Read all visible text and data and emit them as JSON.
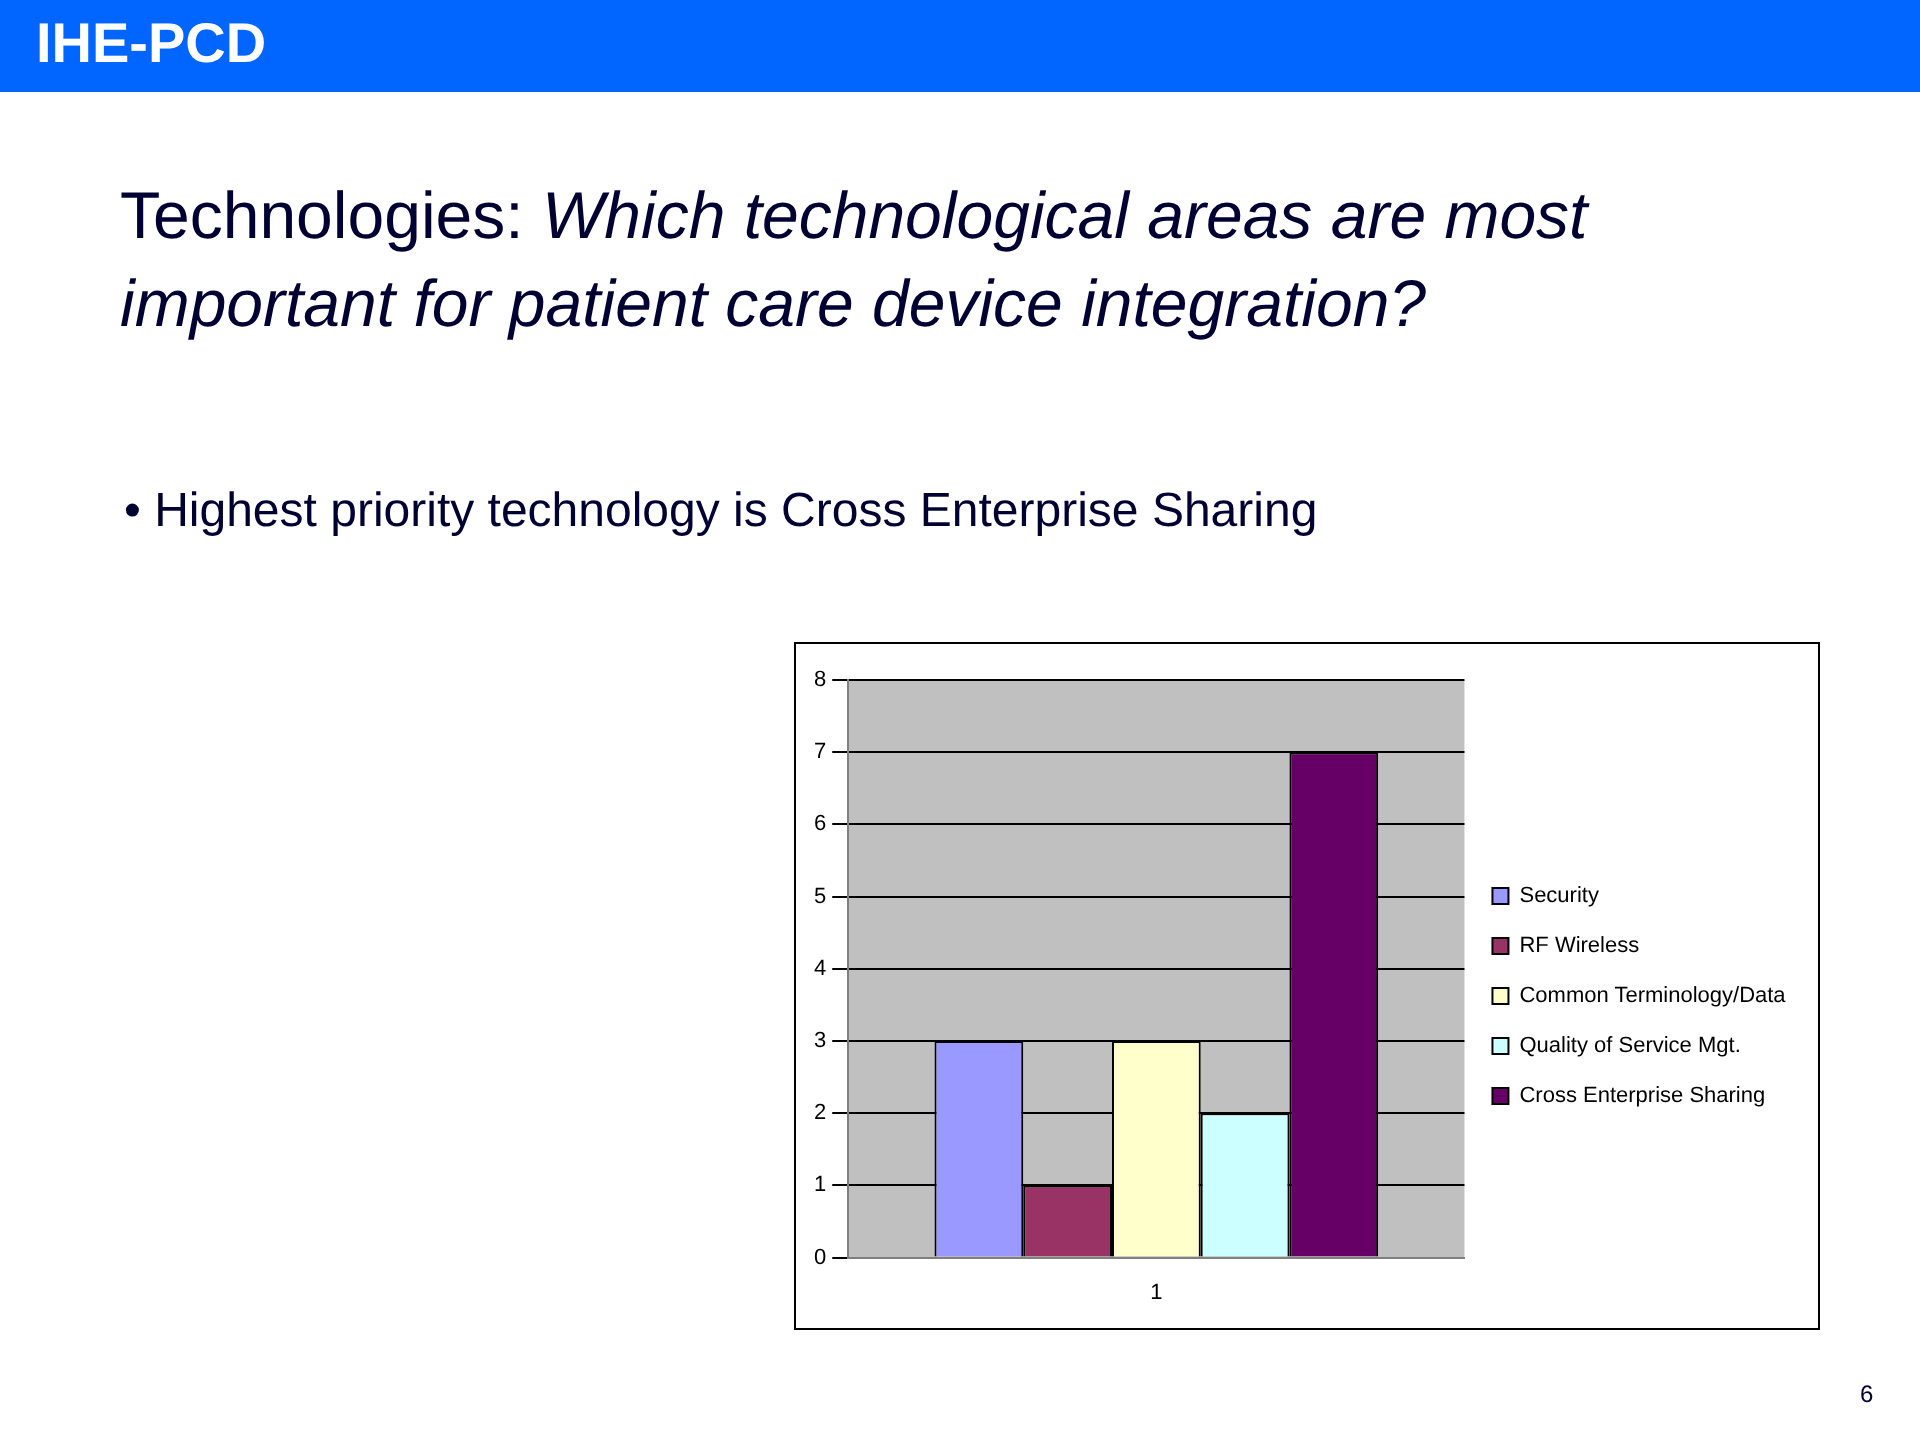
{
  "chart_data": {
    "type": "bar",
    "title": "Technologies: Which technological areas are most important for patient care device integration?",
    "subtitle": "• Highest priority technology is Cross Enterprise Sharing",
    "annotations": [
      "IHE-PCD",
      "6"
    ],
    "categories": [
      "1"
    ],
    "series": [
      {
        "name": "Security",
        "color": "#9999ff",
        "values": [
          3
        ]
      },
      {
        "name": "RF Wireless",
        "color": "#993366",
        "values": [
          1
        ]
      },
      {
        "name": "Common Terminology/Data",
        "color": "#ffffcc",
        "values": [
          3
        ]
      },
      {
        "name": "Quality of Service Mgt.",
        "color": "#ccffff",
        "values": [
          2
        ]
      },
      {
        "name": "Cross Enterprise Sharing",
        "color": "#660066",
        "values": [
          7
        ]
      }
    ],
    "ylim": [
      0,
      8
    ],
    "yticks": [
      0,
      1,
      2,
      3,
      4,
      5,
      6,
      7,
      8
    ],
    "grid": "y",
    "legend": "right"
  }
}
